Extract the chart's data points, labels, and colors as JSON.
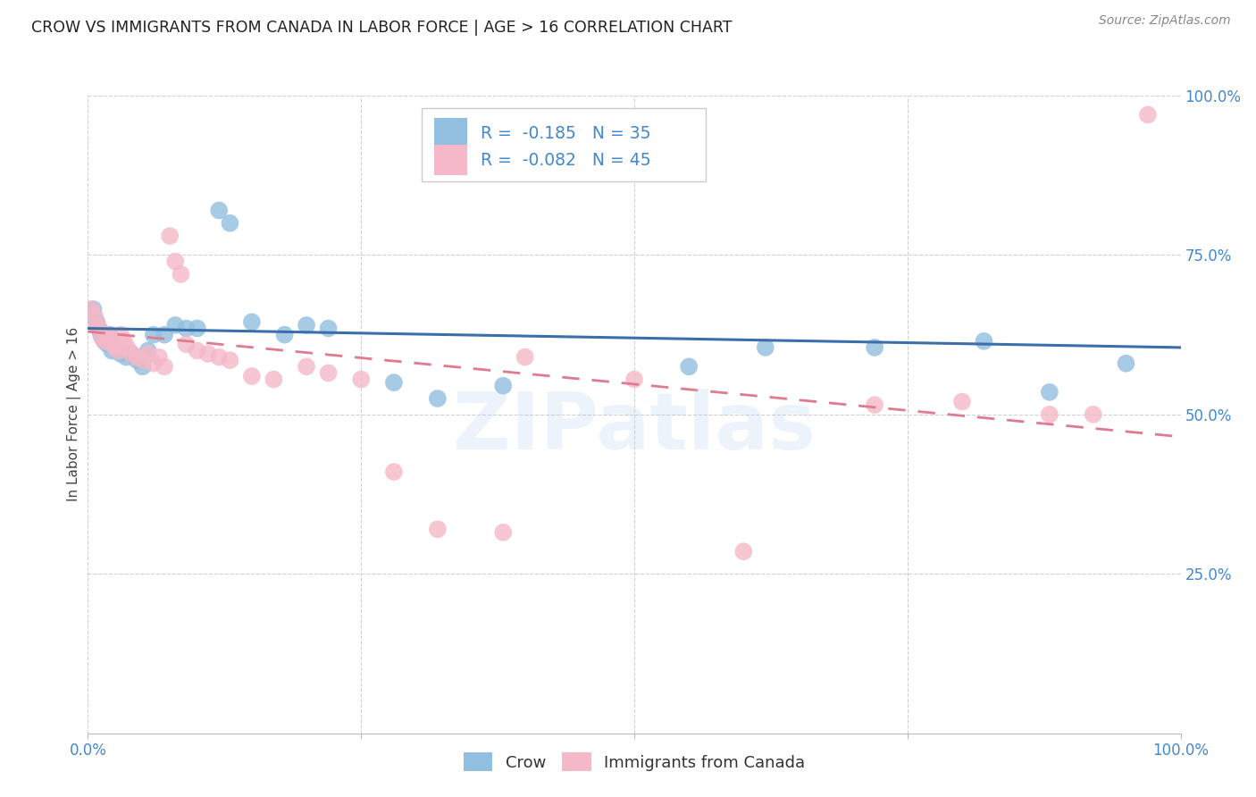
{
  "title": "CROW VS IMMIGRANTS FROM CANADA IN LABOR FORCE | AGE > 16 CORRELATION CHART",
  "source": "Source: ZipAtlas.com",
  "ylabel": "In Labor Force | Age > 16",
  "xlim": [
    0.0,
    1.0
  ],
  "ylim": [
    0.0,
    1.0
  ],
  "xticks": [
    0.0,
    0.25,
    0.5,
    0.75,
    1.0
  ],
  "yticks": [
    0.0,
    0.25,
    0.5,
    0.75,
    1.0
  ],
  "xticklabels": [
    "0.0%",
    "",
    "",
    "",
    "100.0%"
  ],
  "yticklabels": [
    "",
    "25.0%",
    "50.0%",
    "75.0%",
    "100.0%"
  ],
  "legend_r_blue": "-0.185",
  "legend_n_blue": "35",
  "legend_r_pink": "-0.082",
  "legend_n_pink": "45",
  "blue_color": "#92bfdf",
  "pink_color": "#f4b8c8",
  "trendline_blue": "#3a6faa",
  "trendline_pink": "#e07a90",
  "watermark": "ZIPatlas",
  "tick_color": "#4488cc",
  "crow_points_x": [
    0.005,
    0.008,
    0.01,
    0.012,
    0.015,
    0.018,
    0.02,
    0.022,
    0.025,
    0.03,
    0.035,
    0.04,
    0.045,
    0.05,
    0.055,
    0.06,
    0.07,
    0.08,
    0.09,
    0.1,
    0.12,
    0.13,
    0.15,
    0.18,
    0.2,
    0.22,
    0.28,
    0.32,
    0.38,
    0.55,
    0.62,
    0.72,
    0.82,
    0.88,
    0.95
  ],
  "crow_points_y": [
    0.665,
    0.645,
    0.635,
    0.625,
    0.615,
    0.61,
    0.625,
    0.6,
    0.605,
    0.595,
    0.59,
    0.595,
    0.585,
    0.575,
    0.6,
    0.625,
    0.625,
    0.64,
    0.635,
    0.635,
    0.82,
    0.8,
    0.645,
    0.625,
    0.64,
    0.635,
    0.55,
    0.525,
    0.545,
    0.575,
    0.605,
    0.605,
    0.615,
    0.535,
    0.58
  ],
  "canada_points_x": [
    0.003,
    0.006,
    0.008,
    0.01,
    0.013,
    0.016,
    0.018,
    0.02,
    0.022,
    0.025,
    0.028,
    0.03,
    0.033,
    0.036,
    0.04,
    0.045,
    0.05,
    0.055,
    0.06,
    0.065,
    0.07,
    0.075,
    0.08,
    0.085,
    0.09,
    0.1,
    0.11,
    0.12,
    0.13,
    0.15,
    0.17,
    0.2,
    0.22,
    0.25,
    0.28,
    0.32,
    0.38,
    0.4,
    0.5,
    0.6,
    0.72,
    0.8,
    0.88,
    0.92,
    0.97
  ],
  "canada_points_y": [
    0.665,
    0.655,
    0.64,
    0.635,
    0.62,
    0.615,
    0.625,
    0.615,
    0.61,
    0.605,
    0.6,
    0.625,
    0.615,
    0.605,
    0.595,
    0.59,
    0.585,
    0.595,
    0.58,
    0.59,
    0.575,
    0.78,
    0.74,
    0.72,
    0.61,
    0.6,
    0.595,
    0.59,
    0.585,
    0.56,
    0.555,
    0.575,
    0.565,
    0.555,
    0.41,
    0.32,
    0.315,
    0.59,
    0.555,
    0.285,
    0.515,
    0.52,
    0.5,
    0.5,
    0.97
  ],
  "blue_trend_x0": 0.0,
  "blue_trend_y0": 0.635,
  "blue_trend_x1": 1.0,
  "blue_trend_y1": 0.605,
  "pink_trend_x0": 0.0,
  "pink_trend_y0": 0.63,
  "pink_trend_x1": 1.0,
  "pink_trend_y1": 0.465
}
